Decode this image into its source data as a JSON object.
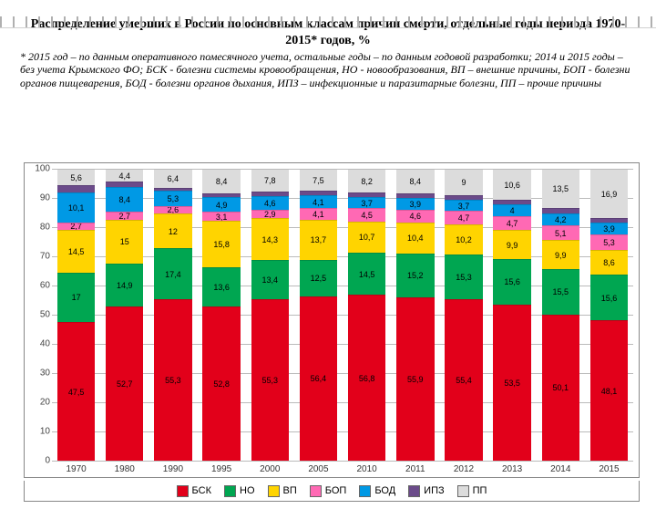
{
  "title": "Распределение умерших в России по основным классам причин смерти, отдельные годы периода 1970-2015* годов, %",
  "note": "* 2015 год – по данным оперативного помесячного учета, остальные годы – по данным годовой разработки; 2014 и 2015 годы – без учета Крымского ФО; БСК - болезни системы кровообращения, НО - новообразования, ВП – внешние причины, БОП - болезни органов пищеварения, БОД - болезни органов дыхания, ИПЗ – инфекционные и паразитарные болезни, ПП – прочие причины",
  "chart": {
    "type": "stacked-bar-100",
    "ylim": [
      0,
      100
    ],
    "ytick_step": 10,
    "grid_color": "#bbbbbb",
    "background": "#ffffff",
    "label_fontsize": 9,
    "series": [
      {
        "key": "БСК",
        "color": "#e2001a"
      },
      {
        "key": "НО",
        "color": "#00a651"
      },
      {
        "key": "ВП",
        "color": "#ffd400"
      },
      {
        "key": "БОП",
        "color": "#ff69b4"
      },
      {
        "key": "БОД",
        "color": "#0099e5"
      },
      {
        "key": "ИПЗ",
        "color": "#6b4b8a"
      },
      {
        "key": "ПП",
        "color": "#dcdcdc"
      }
    ],
    "categories": [
      "1970",
      "1980",
      "1990",
      "1995",
      "2000",
      "2005",
      "2010",
      "2011",
      "2012",
      "2013",
      "2014",
      "2015"
    ],
    "data": [
      [
        47.5,
        17.0,
        14.5,
        2.7,
        10.1,
        2.6,
        5.6
      ],
      [
        52.7,
        14.9,
        15.0,
        2.7,
        8.4,
        1.9,
        4.4
      ],
      [
        55.3,
        17.4,
        12.0,
        2.6,
        5.3,
        1.0,
        6.4
      ],
      [
        52.8,
        13.6,
        15.8,
        3.1,
        4.9,
        1.4,
        8.4
      ],
      [
        55.3,
        13.4,
        14.3,
        2.9,
        4.6,
        1.7,
        7.8
      ],
      [
        56.4,
        12.5,
        13.7,
        4.1,
        4.1,
        1.7,
        7.5
      ],
      [
        56.8,
        14.5,
        10.7,
        4.5,
        3.7,
        1.6,
        8.2
      ],
      [
        55.9,
        15.2,
        10.4,
        4.6,
        3.9,
        1.6,
        8.4
      ],
      [
        55.4,
        15.3,
        10.2,
        4.7,
        3.7,
        1.7,
        9.0
      ],
      [
        53.5,
        15.6,
        9.9,
        4.7,
        4.0,
        1.7,
        10.6
      ],
      [
        50.1,
        15.5,
        9.9,
        5.1,
        4.2,
        1.7,
        13.5
      ],
      [
        48.1,
        15.6,
        8.6,
        5.3,
        3.9,
        1.6,
        16.9
      ]
    ],
    "show_labels": [
      [
        true,
        true,
        true,
        true,
        true,
        false,
        true
      ],
      [
        true,
        true,
        true,
        true,
        true,
        false,
        true
      ],
      [
        true,
        true,
        true,
        true,
        true,
        false,
        true
      ],
      [
        true,
        true,
        true,
        true,
        true,
        false,
        true
      ],
      [
        true,
        true,
        true,
        true,
        true,
        false,
        true
      ],
      [
        true,
        true,
        true,
        true,
        true,
        false,
        true
      ],
      [
        true,
        true,
        true,
        true,
        true,
        false,
        true
      ],
      [
        true,
        true,
        true,
        true,
        true,
        false,
        true
      ],
      [
        true,
        true,
        true,
        true,
        true,
        false,
        true
      ],
      [
        true,
        true,
        true,
        true,
        true,
        false,
        true
      ],
      [
        true,
        true,
        true,
        true,
        true,
        false,
        true
      ],
      [
        true,
        true,
        true,
        true,
        true,
        false,
        true
      ]
    ]
  }
}
